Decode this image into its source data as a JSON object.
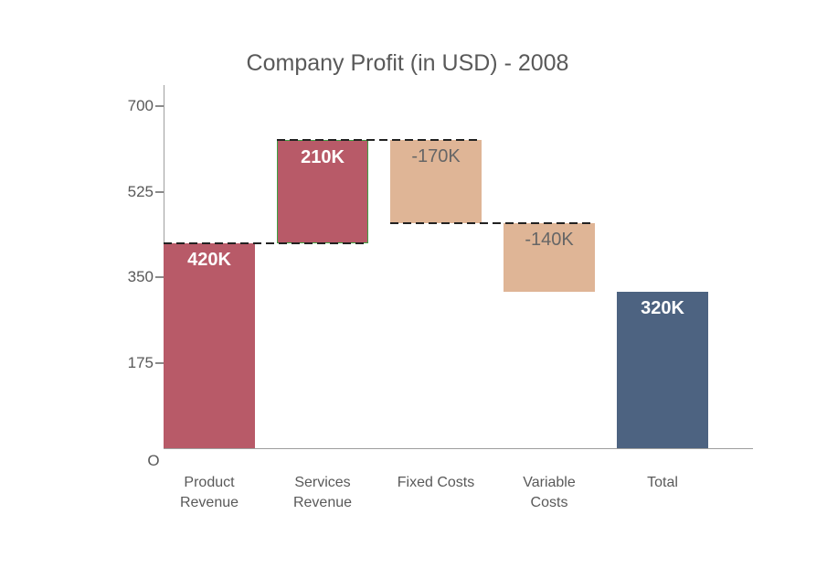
{
  "chart_data": {
    "type": "bar",
    "subtype": "waterfall",
    "title": "Company Profit (in USD) - 2008",
    "categories": [
      "Product Revenue",
      "Services Revenue",
      "Fixed Costs",
      "Variable Costs",
      "Total"
    ],
    "series": [
      {
        "name": "Company Profit",
        "values": [
          420,
          210,
          -170,
          -140,
          320
        ]
      }
    ],
    "bars": [
      {
        "category": "Product Revenue",
        "category_lines": [
          "Product",
          "Revenue"
        ],
        "value": 420,
        "label": "420K",
        "kind": "increase",
        "start": 0,
        "end": 420,
        "selected": false
      },
      {
        "category": "Services Revenue",
        "category_lines": [
          "Services",
          "Revenue"
        ],
        "value": 210,
        "label": "210K",
        "kind": "increase",
        "start": 420,
        "end": 630,
        "selected": true
      },
      {
        "category": "Fixed Costs",
        "category_lines": [
          "Fixed Costs"
        ],
        "value": -170,
        "label": "-170K",
        "kind": "decrease",
        "start": 630,
        "end": 460,
        "selected": false
      },
      {
        "category": "Variable Costs",
        "category_lines": [
          "Variable",
          "Costs"
        ],
        "value": -140,
        "label": "-140K",
        "kind": "decrease",
        "start": 460,
        "end": 320,
        "selected": false
      },
      {
        "category": "Total",
        "category_lines": [
          "Total"
        ],
        "value": 320,
        "label": "320K",
        "kind": "total",
        "start": 0,
        "end": 320,
        "selected": false
      }
    ],
    "connectors": [
      {
        "level": 420,
        "from_bar": 0,
        "to_bar": 1
      },
      {
        "level": 630,
        "from_bar": 1,
        "to_bar": 2
      },
      {
        "level": 460,
        "from_bar": 2,
        "to_bar": 3
      }
    ],
    "yticks": [
      {
        "label": "O",
        "value": 0
      },
      {
        "label": "175",
        "value": 175
      },
      {
        "label": "350",
        "value": 350
      },
      {
        "label": "525",
        "value": 525
      },
      {
        "label": "700",
        "value": 700
      }
    ],
    "ylim": [
      0,
      742
    ],
    "xlabel": "",
    "ylabel": "",
    "grid": false,
    "legend": "none",
    "colors": {
      "increase": "#b85a68",
      "decrease": "#dfb596",
      "total": "#4d6381",
      "increase_label": "#ffffff",
      "decrease_label": "#666666",
      "total_label": "#ffffff",
      "axis": "#9e9e9e",
      "tick_mark": "#8a8a8a",
      "text": "#595959",
      "connector": "#222222",
      "selection": "#3fa044"
    }
  }
}
